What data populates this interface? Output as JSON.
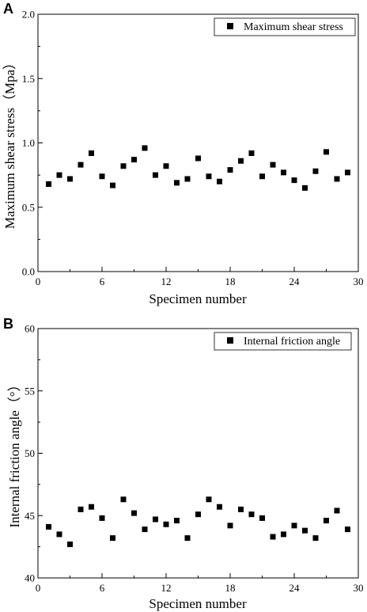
{
  "chart_data": [
    {
      "type": "scatter",
      "panel_label": "A",
      "xlabel": "Specimen number",
      "ylabel": "Maximum shear stress（Mpa）",
      "xlim": [
        0,
        30
      ],
      "ylim": [
        0.0,
        2.0
      ],
      "xticks": [
        0,
        6,
        12,
        18,
        24,
        30
      ],
      "yticks": [
        0.0,
        0.5,
        1.0,
        1.5,
        2.0
      ],
      "ytick_labels": [
        "0.0",
        "0.5",
        "1.0",
        "1.5",
        "2.0"
      ],
      "legend_position": "top-right",
      "grid": false,
      "marker": "square",
      "series": [
        {
          "name": "Maximum shear stress",
          "color": "#000000",
          "x": [
            1,
            2,
            3,
            4,
            5,
            6,
            7,
            8,
            9,
            10,
            11,
            12,
            13,
            14,
            15,
            16,
            17,
            18,
            19,
            20,
            21,
            22,
            23,
            24,
            25,
            26,
            27,
            28,
            29
          ],
          "y": [
            0.68,
            0.75,
            0.72,
            0.83,
            0.92,
            0.74,
            0.67,
            0.82,
            0.87,
            0.96,
            0.75,
            0.82,
            0.69,
            0.72,
            0.88,
            0.74,
            0.7,
            0.79,
            0.86,
            0.92,
            0.74,
            0.83,
            0.77,
            0.71,
            0.65,
            0.78,
            0.93,
            0.72,
            0.77
          ]
        }
      ]
    },
    {
      "type": "scatter",
      "panel_label": "B",
      "xlabel": "Specimen number",
      "ylabel": "Internal friction angle（°）",
      "xlim": [
        0,
        30
      ],
      "ylim": [
        40,
        60
      ],
      "xticks": [
        0,
        6,
        12,
        18,
        24,
        30
      ],
      "yticks": [
        40,
        45,
        50,
        55,
        60
      ],
      "ytick_labels": [
        "40",
        "45",
        "50",
        "55",
        "60"
      ],
      "legend_position": "top-right",
      "grid": false,
      "marker": "square",
      "series": [
        {
          "name": "Internal friction angle",
          "color": "#000000",
          "x": [
            1,
            2,
            3,
            4,
            5,
            6,
            7,
            8,
            9,
            10,
            11,
            12,
            13,
            14,
            15,
            16,
            17,
            18,
            19,
            20,
            21,
            22,
            23,
            24,
            25,
            26,
            27,
            28,
            29
          ],
          "y": [
            44.1,
            43.5,
            42.7,
            45.5,
            45.7,
            44.8,
            43.2,
            46.3,
            45.2,
            43.9,
            44.7,
            44.3,
            44.6,
            43.2,
            45.1,
            46.3,
            45.7,
            44.2,
            45.5,
            45.1,
            44.8,
            43.3,
            43.5,
            44.2,
            43.8,
            43.2,
            44.6,
            45.4,
            43.9
          ]
        }
      ]
    }
  ]
}
